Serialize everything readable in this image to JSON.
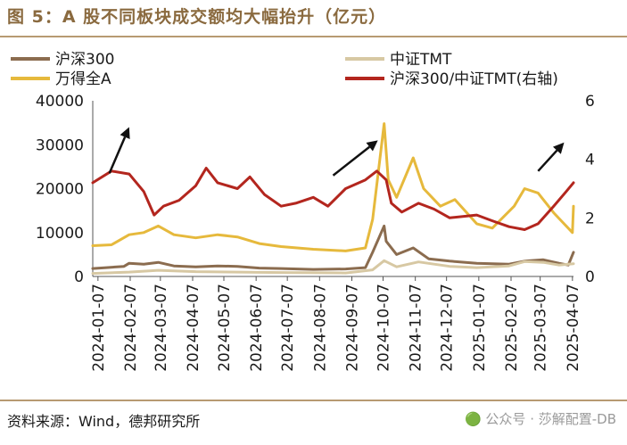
{
  "figure": {
    "title": "图 5：A 股不同板块成交额均大幅抬升（亿元）",
    "source": "资料来源：Wind，德邦研究所",
    "watermark": "🟢 公众号 · 莎解配置-DB"
  },
  "colors": {
    "hs300": "#8b6c4f",
    "zztmt": "#d7c8a3",
    "wande": "#e6b93c",
    "ratio": "#b3261e",
    "arrow": "#111111"
  },
  "chart_data": {
    "type": "line",
    "x_ticks": [
      "2024-01-07",
      "2024-02-07",
      "2024-03-07",
      "2024-04-07",
      "2024-05-07",
      "2024-06-07",
      "2024-07-07",
      "2024-08-07",
      "2024-09-07",
      "2024-10-07",
      "2024-11-07",
      "2024-12-07",
      "2025-01-07",
      "2025-02-07",
      "2025-03-07",
      "2025-04-07"
    ],
    "x_range": [
      "2024-01-02",
      "2025-04-08"
    ],
    "y_left": {
      "range": [
        0,
        40000
      ],
      "ticks": [
        0,
        10000,
        20000,
        30000,
        40000
      ]
    },
    "y_right": {
      "range": [
        0,
        6
      ],
      "ticks": [
        0,
        2,
        4,
        6
      ]
    },
    "legend": [
      "沪深300",
      "中证TMT",
      "万得全A",
      "沪深300/中证TMT(右轴)"
    ],
    "series": [
      {
        "name": "沪深300",
        "axis": "left",
        "color_key": "hs300",
        "points": [
          [
            "2024-01-02",
            1800
          ],
          [
            "2024-01-15",
            2000
          ],
          [
            "2024-02-01",
            2300
          ],
          [
            "2024-02-06",
            3000
          ],
          [
            "2024-02-20",
            2800
          ],
          [
            "2024-03-05",
            3200
          ],
          [
            "2024-03-20",
            2400
          ],
          [
            "2024-04-10",
            2200
          ],
          [
            "2024-05-01",
            2400
          ],
          [
            "2024-05-20",
            2300
          ],
          [
            "2024-06-10",
            1900
          ],
          [
            "2024-07-01",
            1800
          ],
          [
            "2024-08-01",
            1600
          ],
          [
            "2024-09-01",
            1700
          ],
          [
            "2024-09-20",
            2000
          ],
          [
            "2024-09-27",
            5500
          ],
          [
            "2024-10-08",
            11500
          ],
          [
            "2024-10-10",
            8000
          ],
          [
            "2024-10-20",
            5000
          ],
          [
            "2024-11-05",
            6500
          ],
          [
            "2024-11-20",
            4000
          ],
          [
            "2024-12-10",
            3500
          ],
          [
            "2025-01-05",
            3000
          ],
          [
            "2025-02-05",
            2800
          ],
          [
            "2025-02-20",
            3500
          ],
          [
            "2025-03-10",
            3800
          ],
          [
            "2025-03-25",
            3000
          ],
          [
            "2025-04-03",
            2600
          ],
          [
            "2025-04-08",
            5500
          ]
        ]
      },
      {
        "name": "中证TMT",
        "axis": "left",
        "color_key": "zztmt",
        "points": [
          [
            "2024-01-02",
            700
          ],
          [
            "2024-02-06",
            1000
          ],
          [
            "2024-03-05",
            1400
          ],
          [
            "2024-04-10",
            1100
          ],
          [
            "2024-05-20",
            1000
          ],
          [
            "2024-07-01",
            900
          ],
          [
            "2024-09-01",
            800
          ],
          [
            "2024-09-27",
            1500
          ],
          [
            "2024-10-08",
            3600
          ],
          [
            "2024-10-20",
            2200
          ],
          [
            "2024-11-10",
            3300
          ],
          [
            "2024-12-10",
            2300
          ],
          [
            "2025-01-05",
            2000
          ],
          [
            "2025-02-05",
            2400
          ],
          [
            "2025-02-20",
            3400
          ],
          [
            "2025-03-10",
            3200
          ],
          [
            "2025-03-25",
            2600
          ],
          [
            "2025-04-08",
            2900
          ]
        ]
      },
      {
        "name": "万得全A",
        "axis": "left",
        "color_key": "wande",
        "points": [
          [
            "2024-01-02",
            7000
          ],
          [
            "2024-01-20",
            7200
          ],
          [
            "2024-02-06",
            9500
          ],
          [
            "2024-02-20",
            10000
          ],
          [
            "2024-03-05",
            11500
          ],
          [
            "2024-03-20",
            9500
          ],
          [
            "2024-04-10",
            8800
          ],
          [
            "2024-05-01",
            9500
          ],
          [
            "2024-05-20",
            9000
          ],
          [
            "2024-06-10",
            7500
          ],
          [
            "2024-07-01",
            6800
          ],
          [
            "2024-08-01",
            6200
          ],
          [
            "2024-09-01",
            5800
          ],
          [
            "2024-09-20",
            6500
          ],
          [
            "2024-09-27",
            13000
          ],
          [
            "2024-10-08",
            34800
          ],
          [
            "2024-10-12",
            22000
          ],
          [
            "2024-10-20",
            18000
          ],
          [
            "2024-11-05",
            27000
          ],
          [
            "2024-11-15",
            20000
          ],
          [
            "2024-12-01",
            16000
          ],
          [
            "2024-12-15",
            17500
          ],
          [
            "2025-01-05",
            12000
          ],
          [
            "2025-01-20",
            11000
          ],
          [
            "2025-02-10",
            16000
          ],
          [
            "2025-02-20",
            20000
          ],
          [
            "2025-03-05",
            19000
          ],
          [
            "2025-03-20",
            14500
          ],
          [
            "2025-04-07",
            10000
          ],
          [
            "2025-04-08",
            16000
          ]
        ]
      },
      {
        "name": "沪深300/中证TMT(右轴)",
        "axis": "right",
        "color_key": "ratio",
        "points": [
          [
            "2024-01-02",
            3.2
          ],
          [
            "2024-01-20",
            3.6
          ],
          [
            "2024-02-06",
            3.5
          ],
          [
            "2024-02-20",
            2.9
          ],
          [
            "2024-03-01",
            2.1
          ],
          [
            "2024-03-10",
            2.4
          ],
          [
            "2024-03-25",
            2.6
          ],
          [
            "2024-04-10",
            3.1
          ],
          [
            "2024-04-20",
            3.7
          ],
          [
            "2024-05-01",
            3.2
          ],
          [
            "2024-05-20",
            3.0
          ],
          [
            "2024-06-01",
            3.4
          ],
          [
            "2024-06-15",
            2.8
          ],
          [
            "2024-07-01",
            2.4
          ],
          [
            "2024-07-15",
            2.5
          ],
          [
            "2024-08-01",
            2.7
          ],
          [
            "2024-08-15",
            2.4
          ],
          [
            "2024-09-01",
            3.0
          ],
          [
            "2024-09-20",
            3.3
          ],
          [
            "2024-10-01",
            3.6
          ],
          [
            "2024-10-10",
            3.3
          ],
          [
            "2024-10-15",
            2.5
          ],
          [
            "2024-10-25",
            2.2
          ],
          [
            "2024-11-10",
            2.5
          ],
          [
            "2024-11-25",
            2.3
          ],
          [
            "2024-12-10",
            2.0
          ],
          [
            "2025-01-05",
            2.1
          ],
          [
            "2025-01-20",
            1.9
          ],
          [
            "2025-02-05",
            1.7
          ],
          [
            "2025-02-20",
            1.6
          ],
          [
            "2025-03-05",
            1.8
          ],
          [
            "2025-03-20",
            2.4
          ],
          [
            "2025-04-01",
            2.9
          ],
          [
            "2025-04-08",
            3.2
          ]
        ]
      }
    ],
    "arrows": [
      {
        "from": [
          "2024-01-18",
          23500
        ],
        "to": [
          "2024-02-06",
          34000
        ]
      },
      {
        "from": [
          "2024-08-20",
          23000
        ],
        "to": [
          "2024-10-02",
          31000
        ]
      },
      {
        "from": [
          "2025-03-05",
          24000
        ],
        "to": [
          "2025-03-30",
          30500
        ]
      }
    ]
  }
}
